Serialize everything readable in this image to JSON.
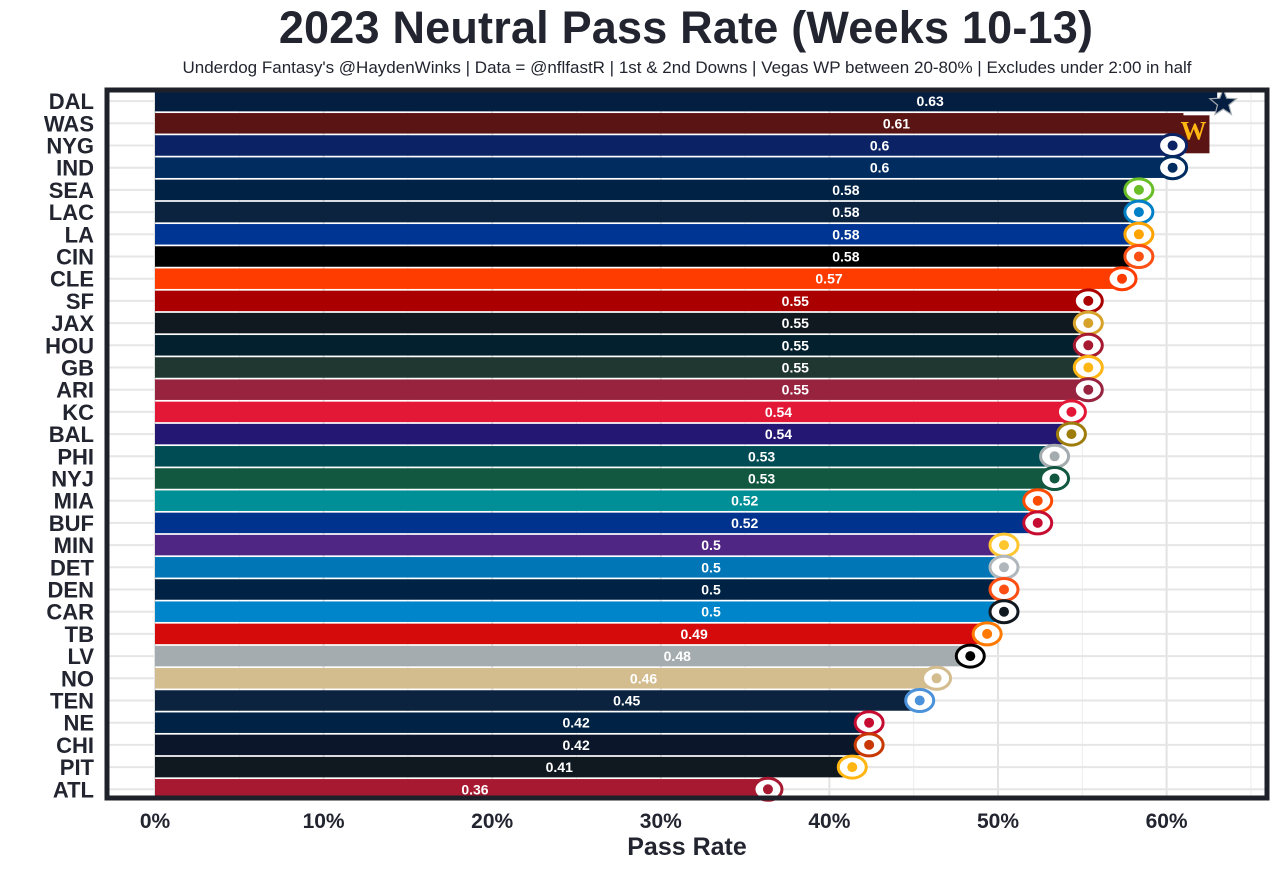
{
  "chart_data": {
    "type": "bar",
    "orientation": "horizontal",
    "title": "2023 Neutral Pass Rate (Weeks 10-13)",
    "subtitle": "Underdog Fantasy's @HaydenWinks | Data = @nflfastR | 1st & 2nd Downs | Vegas WP between 20-80% | Excludes under 2:00 in half",
    "xlabel": "Pass Rate",
    "ylabel": "",
    "xlim": [
      0,
      0.66
    ],
    "x_ticks": [
      0,
      0.1,
      0.2,
      0.3,
      0.4,
      0.5,
      0.6
    ],
    "x_tick_labels": [
      "0%",
      "10%",
      "20%",
      "30%",
      "40%",
      "50%",
      "60%"
    ],
    "grid": true,
    "legend": "none",
    "categories": [
      "DAL",
      "WAS",
      "NYG",
      "IND",
      "SEA",
      "LAC",
      "LA",
      "CIN",
      "CLE",
      "SF",
      "JAX",
      "HOU",
      "GB",
      "ARI",
      "KC",
      "BAL",
      "PHI",
      "NYJ",
      "MIA",
      "BUF",
      "MIN",
      "DET",
      "DEN",
      "CAR",
      "TB",
      "LV",
      "NO",
      "TEN",
      "NE",
      "CHI",
      "PIT",
      "ATL"
    ],
    "values": [
      0.63,
      0.61,
      0.6,
      0.6,
      0.58,
      0.58,
      0.58,
      0.58,
      0.57,
      0.55,
      0.55,
      0.55,
      0.55,
      0.55,
      0.54,
      0.54,
      0.53,
      0.53,
      0.52,
      0.52,
      0.5,
      0.5,
      0.5,
      0.5,
      0.49,
      0.48,
      0.46,
      0.45,
      0.42,
      0.42,
      0.41,
      0.36
    ],
    "value_labels": [
      "0.63",
      "0.61",
      "0.6",
      "0.6",
      "0.58",
      "0.58",
      "0.58",
      "0.58",
      "0.57",
      "0.55",
      "0.55",
      "0.55",
      "0.55",
      "0.55",
      "0.54",
      "0.54",
      "0.53",
      "0.53",
      "0.52",
      "0.52",
      "0.5",
      "0.5",
      "0.5",
      "0.5",
      "0.49",
      "0.48",
      "0.46",
      "0.45",
      "0.42",
      "0.42",
      "0.41",
      "0.36"
    ],
    "bar_colors": [
      "#041E42",
      "#5A1414",
      "#0B2265",
      "#002C5F",
      "#002244",
      "#0C2340",
      "#003594",
      "#000000",
      "#FF3C00",
      "#AA0000",
      "#101820",
      "#03202F",
      "#203731",
      "#97233F",
      "#E31837",
      "#241773",
      "#004C54",
      "#125740",
      "#008E97",
      "#00338D",
      "#4F2683",
      "#0076B6",
      "#002244",
      "#0085CA",
      "#D50A0A",
      "#A5ACAF",
      "#D3BC8D",
      "#0C2340",
      "#002244",
      "#0B162A",
      "#101820",
      "#A71930"
    ],
    "logo_icons": [
      "star-icon",
      "w-letter-icon",
      "ny-letters-icon",
      "horseshoe-icon",
      "seahawk-icon",
      "bolt-icon",
      "ram-horn-icon",
      "tiger-stripe-icon",
      "helmet-icon",
      "oval-sf-icon",
      "jaguar-icon",
      "bull-icon",
      "g-letter-icon",
      "cardinal-icon",
      "arrowhead-icon",
      "raven-icon",
      "eagle-icon",
      "jets-oval-icon",
      "dolphin-icon",
      "buffalo-icon",
      "viking-icon",
      "lion-icon",
      "horse-icon",
      "panther-icon",
      "flag-icon",
      "shield-icon",
      "fleur-de-lis-icon",
      "t-circle-icon",
      "patriot-icon",
      "c-letter-icon",
      "hypocycloid-icon",
      "falcon-icon"
    ],
    "logo_colors": [
      "#041E42",
      "#5A1414",
      "#0B2265",
      "#002C5F",
      "#69BE28",
      "#0080C6",
      "#FFA300",
      "#FB4F14",
      "#FF3C00",
      "#AA0000",
      "#D7A22A",
      "#A71930",
      "#FFB612",
      "#97233F",
      "#E31837",
      "#9E7C0C",
      "#A5ACAF",
      "#125740",
      "#FC4C02",
      "#C60C30",
      "#FFC62F",
      "#B0B7BC",
      "#FB4F14",
      "#101820",
      "#FF7900",
      "#000000",
      "#D3BC8D",
      "#4B92DB",
      "#C60C30",
      "#C83803",
      "#FFB612",
      "#A71930"
    ]
  }
}
